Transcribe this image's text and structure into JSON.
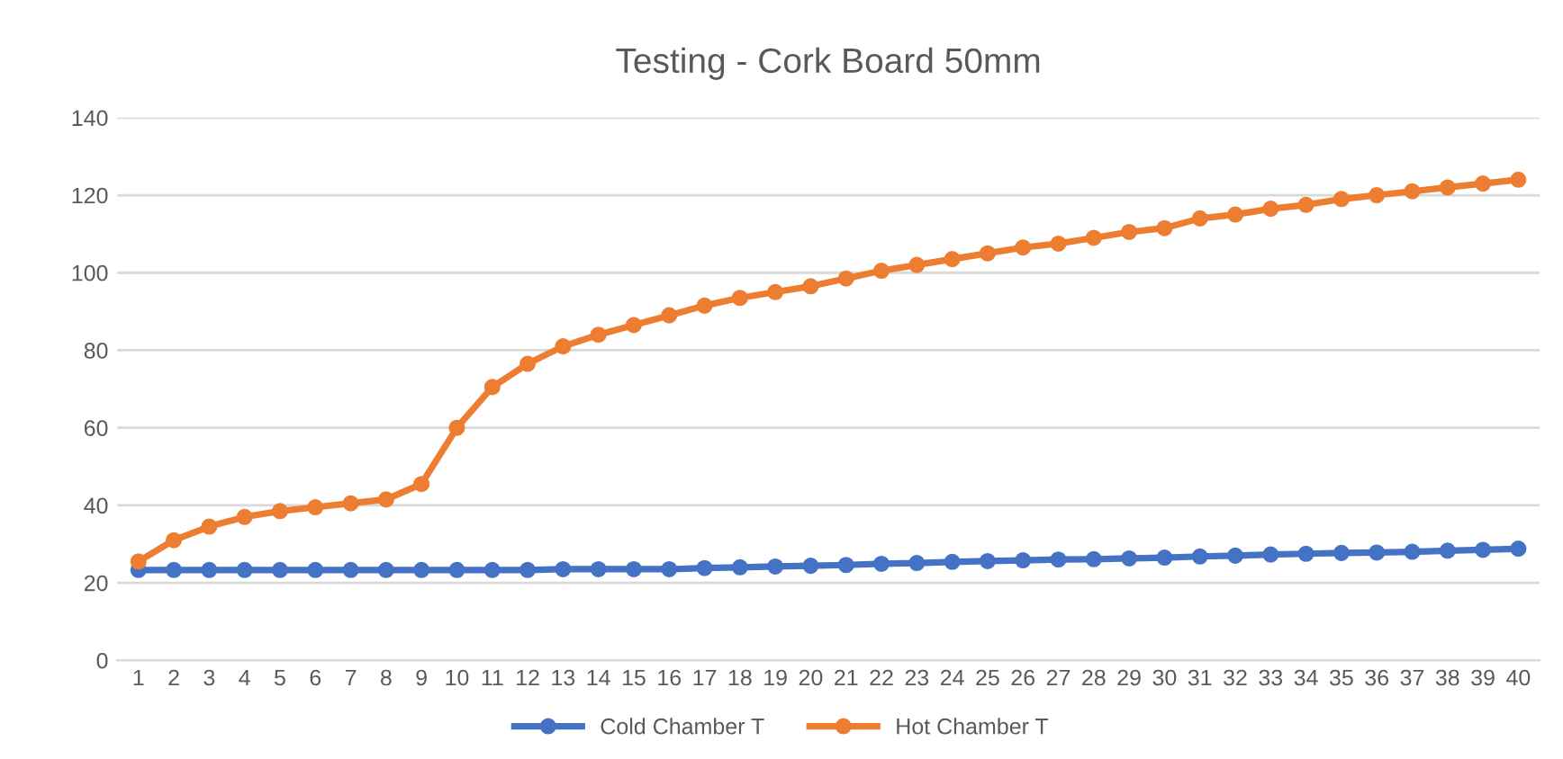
{
  "chart_data": {
    "type": "line",
    "title": "Testing - Cork Board 50mm",
    "categories": [
      "1",
      "2",
      "3",
      "4",
      "5",
      "6",
      "7",
      "8",
      "9",
      "10",
      "11",
      "12",
      "13",
      "14",
      "15",
      "16",
      "17",
      "18",
      "19",
      "20",
      "21",
      "22",
      "23",
      "24",
      "25",
      "26",
      "27",
      "28",
      "29",
      "30",
      "31",
      "32",
      "33",
      "34",
      "35",
      "36",
      "37",
      "38",
      "39",
      "40"
    ],
    "series": [
      {
        "name": "Cold Chamber T",
        "color": "#4472c4",
        "values": [
          23.3,
          23.3,
          23.3,
          23.3,
          23.3,
          23.3,
          23.3,
          23.3,
          23.3,
          23.3,
          23.3,
          23.3,
          23.5,
          23.5,
          23.5,
          23.5,
          23.8,
          24,
          24.2,
          24.4,
          24.6,
          24.9,
          25.1,
          25.4,
          25.6,
          25.8,
          26,
          26.1,
          26.3,
          26.5,
          26.8,
          27,
          27.3,
          27.5,
          27.7,
          27.8,
          28,
          28.3,
          28.5,
          28.8
        ]
      },
      {
        "name": "Hot Chamber T",
        "color": "#ed7d31",
        "values": [
          25.5,
          31,
          34.5,
          37,
          38.5,
          39.5,
          40.5,
          41.5,
          45.5,
          60,
          70.5,
          76.5,
          81,
          84,
          86.5,
          89,
          91.5,
          93.5,
          95,
          96.5,
          98.5,
          100.5,
          102,
          103.5,
          105,
          106.5,
          107.5,
          109,
          110.5,
          111.5,
          114,
          115,
          116.5,
          117.5,
          119,
          120,
          121,
          122,
          123,
          124
        ]
      }
    ],
    "ylim": [
      0,
      140
    ],
    "yticks": [
      0,
      20,
      40,
      60,
      80,
      100,
      120,
      140
    ],
    "grid": "y",
    "legend": "bottom",
    "marker": "circle",
    "line_style": "solid"
  }
}
